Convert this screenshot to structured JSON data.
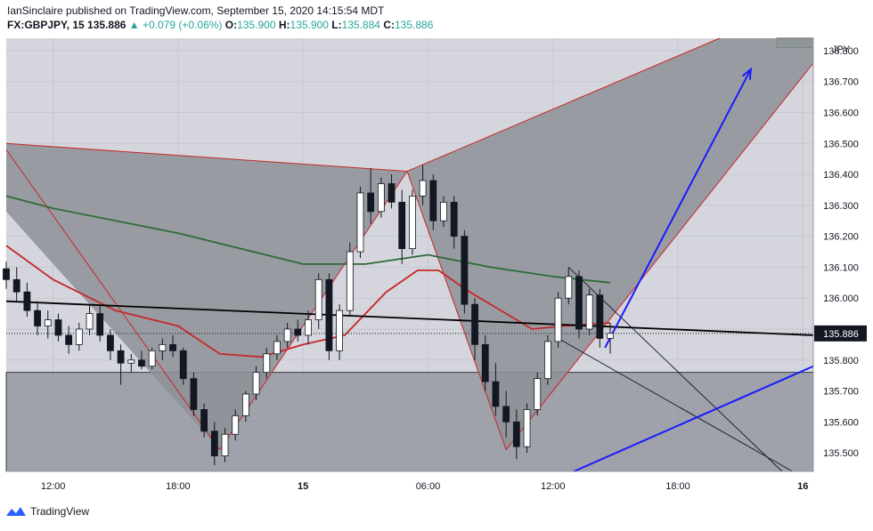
{
  "header": {
    "publisher": "IanSinclaire",
    "published_text": "published on TradingView.com, September 15, 2020 14:15:54 MDT",
    "symbol": "FX:GBPJPY, 15",
    "last_price": "135.886",
    "change_arrow": "▲",
    "change": "+0.079 (+0.06%)",
    "o_label": "O:",
    "o_value": "135.900",
    "h_label": "H:",
    "h_value": "135.900",
    "l_label": "L:",
    "l_value": "135.884",
    "c_label": "C:",
    "c_value": "135.886"
  },
  "footer": {
    "brand": "TradingView"
  },
  "colors": {
    "background": "#d4d5dd",
    "pattern_fill": "#8e9098",
    "pattern_edge": "#c62828",
    "candle_up": "#ffffff",
    "candle_down": "#131722",
    "ma_fast": "#c62828",
    "ma_slow": "#2e6b36",
    "trend": "#000000",
    "projection": "#1a1aff",
    "zone_box": "#6d9e68",
    "price_tag": "#131722"
  },
  "chart_data": {
    "type": "candlestick",
    "currency_label": "JPY",
    "price_axis": {
      "ticks": [
        "136.800",
        "136.700",
        "136.600",
        "136.500",
        "136.400",
        "136.300",
        "136.200",
        "136.100",
        "136.000",
        "135.900",
        "135.800",
        "135.700",
        "135.600",
        "135.500"
      ],
      "range": [
        135.44,
        136.84
      ]
    },
    "time_axis": {
      "ticks": [
        "12:00",
        "18:00",
        "15",
        "06:00",
        "12:00",
        "18:00",
        "16"
      ],
      "start": "Sep 14 09:45",
      "end": "Sep 16 00:30"
    },
    "current_price": {
      "label": "135.886",
      "value": 135.886
    },
    "candles": [
      {
        "t": "Sep 14 09:45",
        "o": 136.095,
        "h": 136.118,
        "l": 136.03,
        "c": 136.06
      },
      {
        "t": "Sep 14 10:15",
        "o": 136.06,
        "h": 136.1,
        "l": 135.99,
        "c": 136.02
      },
      {
        "t": "Sep 14 10:45",
        "o": 136.02,
        "h": 136.05,
        "l": 135.94,
        "c": 135.96
      },
      {
        "t": "Sep 14 11:15",
        "o": 135.96,
        "h": 135.99,
        "l": 135.88,
        "c": 135.91
      },
      {
        "t": "Sep 14 11:45",
        "o": 135.91,
        "h": 135.96,
        "l": 135.87,
        "c": 135.93
      },
      {
        "t": "Sep 14 12:15",
        "o": 135.93,
        "h": 135.95,
        "l": 135.86,
        "c": 135.88
      },
      {
        "t": "Sep 14 12:45",
        "o": 135.88,
        "h": 135.91,
        "l": 135.82,
        "c": 135.85
      },
      {
        "t": "Sep 14 13:15",
        "o": 135.85,
        "h": 135.92,
        "l": 135.83,
        "c": 135.9
      },
      {
        "t": "Sep 14 13:45",
        "o": 135.9,
        "h": 135.98,
        "l": 135.88,
        "c": 135.95
      },
      {
        "t": "Sep 14 14:15",
        "o": 135.95,
        "h": 135.98,
        "l": 135.86,
        "c": 135.88
      },
      {
        "t": "Sep 14 14:45",
        "o": 135.88,
        "h": 135.9,
        "l": 135.8,
        "c": 135.83
      },
      {
        "t": "Sep 14 15:15",
        "o": 135.83,
        "h": 135.85,
        "l": 135.72,
        "c": 135.79
      },
      {
        "t": "Sep 14 15:45",
        "o": 135.79,
        "h": 135.82,
        "l": 135.76,
        "c": 135.8
      },
      {
        "t": "Sep 14 16:15",
        "o": 135.8,
        "h": 135.83,
        "l": 135.77,
        "c": 135.78
      },
      {
        "t": "Sep 14 16:45",
        "o": 135.78,
        "h": 135.84,
        "l": 135.77,
        "c": 135.83
      },
      {
        "t": "Sep 14 17:15",
        "o": 135.83,
        "h": 135.87,
        "l": 135.8,
        "c": 135.85
      },
      {
        "t": "Sep 14 17:45",
        "o": 135.85,
        "h": 135.88,
        "l": 135.81,
        "c": 135.83
      },
      {
        "t": "Sep 14 18:15",
        "o": 135.83,
        "h": 135.84,
        "l": 135.72,
        "c": 135.74
      },
      {
        "t": "Sep 14 18:45",
        "o": 135.74,
        "h": 135.76,
        "l": 135.62,
        "c": 135.64
      },
      {
        "t": "Sep 14 19:15",
        "o": 135.64,
        "h": 135.66,
        "l": 135.55,
        "c": 135.57
      },
      {
        "t": "Sep 14 19:45",
        "o": 135.57,
        "h": 135.6,
        "l": 135.46,
        "c": 135.49
      },
      {
        "t": "Sep 14 20:15",
        "o": 135.49,
        "h": 135.58,
        "l": 135.47,
        "c": 135.56
      },
      {
        "t": "Sep 14 20:45",
        "o": 135.56,
        "h": 135.64,
        "l": 135.54,
        "c": 135.62
      },
      {
        "t": "Sep 14 21:15",
        "o": 135.62,
        "h": 135.7,
        "l": 135.6,
        "c": 135.69
      },
      {
        "t": "Sep 14 21:45",
        "o": 135.69,
        "h": 135.78,
        "l": 135.67,
        "c": 135.76
      },
      {
        "t": "Sep 14 22:15",
        "o": 135.76,
        "h": 135.84,
        "l": 135.74,
        "c": 135.82
      },
      {
        "t": "Sep 14 22:45",
        "o": 135.82,
        "h": 135.88,
        "l": 135.8,
        "c": 135.86
      },
      {
        "t": "Sep 14 23:15",
        "o": 135.86,
        "h": 135.92,
        "l": 135.84,
        "c": 135.9
      },
      {
        "t": "Sep 14 23:45",
        "o": 135.9,
        "h": 135.93,
        "l": 135.86,
        "c": 135.88
      },
      {
        "t": "Sep 15 00:15",
        "o": 135.88,
        "h": 135.96,
        "l": 135.85,
        "c": 135.93
      },
      {
        "t": "Sep 15 00:45",
        "o": 135.93,
        "h": 136.08,
        "l": 135.9,
        "c": 136.06
      },
      {
        "t": "Sep 15 01:15",
        "o": 136.06,
        "h": 136.08,
        "l": 135.8,
        "c": 135.83
      },
      {
        "t": "Sep 15 01:45",
        "o": 135.83,
        "h": 135.98,
        "l": 135.8,
        "c": 135.96
      },
      {
        "t": "Sep 15 02:15",
        "o": 135.96,
        "h": 136.18,
        "l": 135.94,
        "c": 136.15
      },
      {
        "t": "Sep 15 02:45",
        "o": 136.15,
        "h": 136.36,
        "l": 136.13,
        "c": 136.34
      },
      {
        "t": "Sep 15 03:15",
        "o": 136.34,
        "h": 136.42,
        "l": 136.24,
        "c": 136.28
      },
      {
        "t": "Sep 15 03:45",
        "o": 136.28,
        "h": 136.39,
        "l": 136.26,
        "c": 136.37
      },
      {
        "t": "Sep 15 04:15",
        "o": 136.37,
        "h": 136.4,
        "l": 136.29,
        "c": 136.31
      },
      {
        "t": "Sep 15 04:45",
        "o": 136.31,
        "h": 136.35,
        "l": 136.11,
        "c": 136.16
      },
      {
        "t": "Sep 15 05:15",
        "o": 136.16,
        "h": 136.35,
        "l": 136.14,
        "c": 136.33
      },
      {
        "t": "Sep 15 05:45",
        "o": 136.33,
        "h": 136.43,
        "l": 136.3,
        "c": 136.38
      },
      {
        "t": "Sep 15 06:15",
        "o": 136.38,
        "h": 136.4,
        "l": 136.22,
        "c": 136.25
      },
      {
        "t": "Sep 15 06:45",
        "o": 136.25,
        "h": 136.33,
        "l": 136.23,
        "c": 136.31
      },
      {
        "t": "Sep 15 07:15",
        "o": 136.31,
        "h": 136.33,
        "l": 136.16,
        "c": 136.2
      },
      {
        "t": "Sep 15 07:45",
        "o": 136.2,
        "h": 136.22,
        "l": 135.95,
        "c": 135.98
      },
      {
        "t": "Sep 15 08:15",
        "o": 135.98,
        "h": 136.0,
        "l": 135.8,
        "c": 135.85
      },
      {
        "t": "Sep 15 08:45",
        "o": 135.85,
        "h": 135.88,
        "l": 135.7,
        "c": 135.73
      },
      {
        "t": "Sep 15 09:15",
        "o": 135.73,
        "h": 135.79,
        "l": 135.62,
        "c": 135.65
      },
      {
        "t": "Sep 15 09:45",
        "o": 135.65,
        "h": 135.7,
        "l": 135.55,
        "c": 135.6
      },
      {
        "t": "Sep 15 10:15",
        "o": 135.6,
        "h": 135.64,
        "l": 135.48,
        "c": 135.52
      },
      {
        "t": "Sep 15 10:45",
        "o": 135.52,
        "h": 135.66,
        "l": 135.5,
        "c": 135.64
      },
      {
        "t": "Sep 15 11:15",
        "o": 135.64,
        "h": 135.76,
        "l": 135.62,
        "c": 135.74
      },
      {
        "t": "Sep 15 11:45",
        "o": 135.74,
        "h": 135.88,
        "l": 135.72,
        "c": 135.86
      },
      {
        "t": "Sep 15 12:15",
        "o": 135.86,
        "h": 136.02,
        "l": 135.84,
        "c": 136.0
      },
      {
        "t": "Sep 15 12:45",
        "o": 136.0,
        "h": 136.1,
        "l": 135.98,
        "c": 136.07
      },
      {
        "t": "Sep 15 13:15",
        "o": 136.07,
        "h": 136.09,
        "l": 135.87,
        "c": 135.9
      },
      {
        "t": "Sep 15 13:45",
        "o": 135.9,
        "h": 136.03,
        "l": 135.88,
        "c": 136.01
      },
      {
        "t": "Sep 15 14:15",
        "o": 136.01,
        "h": 136.03,
        "l": 135.84,
        "c": 135.87
      },
      {
        "t": "Sep 15 14:45",
        "o": 135.87,
        "h": 135.92,
        "l": 135.82,
        "c": 135.886
      }
    ],
    "moving_averages": [
      {
        "color_key": "ma_fast",
        "points": [
          {
            "t": "Sep 14 09:45",
            "v": 136.17
          },
          {
            "t": "Sep 14 12:00",
            "v": 136.06
          },
          {
            "t": "Sep 14 15:00",
            "v": 135.96
          },
          {
            "t": "Sep 14 18:00",
            "v": 135.91
          },
          {
            "t": "Sep 14 20:00",
            "v": 135.82
          },
          {
            "t": "Sep 14 22:00",
            "v": 135.81
          },
          {
            "t": "Sep 15 00:00",
            "v": 135.85
          },
          {
            "t": "Sep 15 02:00",
            "v": 135.88
          },
          {
            "t": "Sep 15 04:00",
            "v": 136.02
          },
          {
            "t": "Sep 15 05:30",
            "v": 136.09
          },
          {
            "t": "Sep 15 06:30",
            "v": 136.09
          },
          {
            "t": "Sep 15 08:00",
            "v": 136.02
          },
          {
            "t": "Sep 15 09:30",
            "v": 135.96
          },
          {
            "t": "Sep 15 11:00",
            "v": 135.9
          },
          {
            "t": "Sep 15 12:30",
            "v": 135.91
          },
          {
            "t": "Sep 15 14:45",
            "v": 135.92
          }
        ]
      },
      {
        "color_key": "ma_slow",
        "points": [
          {
            "t": "Sep 14 09:45",
            "v": 136.33
          },
          {
            "t": "Sep 14 12:00",
            "v": 136.29
          },
          {
            "t": "Sep 14 15:00",
            "v": 136.25
          },
          {
            "t": "Sep 14 18:00",
            "v": 136.21
          },
          {
            "t": "Sep 14 21:00",
            "v": 136.16
          },
          {
            "t": "Sep 15 00:00",
            "v": 136.11
          },
          {
            "t": "Sep 15 03:00",
            "v": 136.11
          },
          {
            "t": "Sep 15 06:00",
            "v": 136.14
          },
          {
            "t": "Sep 15 09:00",
            "v": 136.1
          },
          {
            "t": "Sep 15 12:00",
            "v": 136.07
          },
          {
            "t": "Sep 15 14:45",
            "v": 136.05
          }
        ]
      }
    ],
    "harmonic_pattern": {
      "points": [
        {
          "t": "Sep 14 09:45",
          "p": 136.48
        },
        {
          "t": "Sep 14 20:00",
          "p": 135.51
        },
        {
          "t": "Sep 15 05:00",
          "p": 136.41
        },
        {
          "t": "Sep 15 09:45",
          "p": 135.51
        },
        {
          "t": "Sep 16 00:30",
          "p": 136.76
        }
      ],
      "upper_edge": [
        {
          "t": "Sep 15 05:00",
          "p": 136.41
        },
        {
          "t": "Sep 15 20:00",
          "p": 136.84
        }
      ],
      "left_top": {
        "t": "Sep 14 09:45",
        "p": 136.5
      },
      "left_bottom": {
        "t": "Sep 14 09:45",
        "p": 136.28
      }
    },
    "trendline": [
      {
        "t": "Sep 14 09:45",
        "p": 135.99
      },
      {
        "t": "Sep 16 00:30",
        "p": 135.88
      }
    ],
    "gray_zone": {
      "top": 135.76,
      "bottom": 135.44
    },
    "green_zone": {
      "t1": "Sep 15 22:45",
      "t2": "Sep 16 00:30",
      "top": 136.86,
      "bottom": 136.81
    },
    "projections": [
      {
        "from": {
          "t": "Sep 15 14:30",
          "p": 135.84
        },
        "to": {
          "t": "Sep 15 21:30",
          "p": 136.74
        },
        "arrow": true
      },
      {
        "from": {
          "t": "Sep 15 13:00",
          "p": 135.44
        },
        "to": {
          "t": "Sep 16 00:30",
          "p": 135.78
        },
        "arrow": false
      }
    ],
    "channel_lines": [
      [
        {
          "t": "Sep 15 12:45",
          "p": 136.1
        },
        {
          "t": "Sep 15 23:00",
          "p": 135.44
        }
      ],
      [
        {
          "t": "Sep 15 12:15",
          "p": 135.87
        },
        {
          "t": "Sep 15 23:30",
          "p": 135.44
        }
      ]
    ]
  }
}
